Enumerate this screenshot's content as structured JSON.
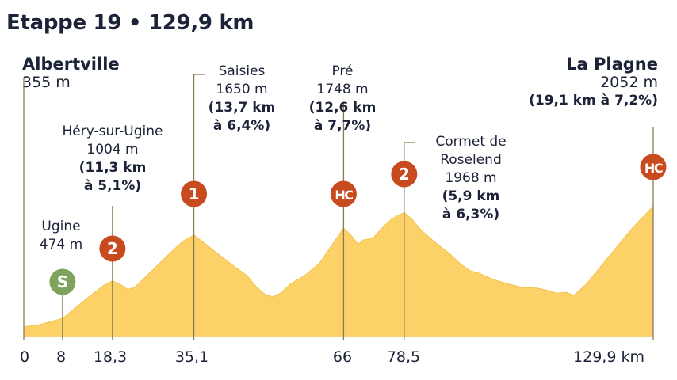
{
  "title": "Etappe 19 • 129,9 km",
  "colors": {
    "profile_fill": "#fcd268",
    "profile_stroke": "#f2c24e",
    "marker_line": "#8a7a55",
    "climb_badge": "#c84a1f",
    "sprint_badge": "#7ea35c"
  },
  "start": {
    "name": "Albertville",
    "altitude": "355 m"
  },
  "finish": {
    "name": "La Plagne",
    "altitude": "2052 m",
    "climb": "(19,1 km à 7,2%)",
    "badge": "HC"
  },
  "points": [
    {
      "name": "Ugine",
      "altitude": "474 m",
      "badge": "S",
      "badge_type": "sprint"
    },
    {
      "name": "Héry-sur-Ugine",
      "altitude": "1004 m",
      "climb_1": "(11,3 km",
      "climb_2": "à 5,1%)",
      "badge": "2"
    },
    {
      "name": "Saisies",
      "altitude": "1650 m",
      "climb_1": "(13,7 km",
      "climb_2": "à 6,4%)",
      "badge": "1"
    },
    {
      "name": "Pré",
      "altitude": "1748 m",
      "climb_1": "(12,6 km",
      "climb_2": "à 7,7%)",
      "badge": "HC"
    },
    {
      "name_1": "Cormet de",
      "name_2": "Roselend",
      "altitude": "1968 m",
      "climb_1": "(5,9 km",
      "climb_2": "à 6,3%)",
      "badge": "2"
    }
  ],
  "x_ticks": [
    "0",
    "8",
    "18,3",
    "35,1",
    "66",
    "78,5",
    "129,9 km"
  ],
  "chart_data": {
    "type": "area",
    "title": "Etappe 19 • 129,9 km",
    "x_unit": "km",
    "y_unit": "m",
    "xlim": [
      0,
      129.9
    ],
    "x": [
      0,
      3,
      8,
      11,
      14,
      16.5,
      18.3,
      20,
      21.5,
      23,
      25,
      28,
      31,
      33,
      35.1,
      37,
      40,
      43,
      46,
      48,
      50,
      51.5,
      53,
      55,
      58,
      61,
      63,
      66,
      67.5,
      69,
      70,
      72,
      73.5,
      76,
      78.5,
      80,
      82,
      85,
      88,
      90,
      92,
      94,
      97,
      100,
      103,
      106,
      108,
      110,
      112,
      113.5,
      116,
      119,
      122,
      125,
      127,
      129.9
    ],
    "y": [
      355,
      380,
      474,
      640,
      810,
      940,
      1004,
      950,
      880,
      920,
      1050,
      1250,
      1450,
      1570,
      1650,
      1550,
      1390,
      1230,
      1080,
      920,
      800,
      780,
      830,
      960,
      1080,
      1250,
      1450,
      1748,
      1650,
      1520,
      1580,
      1600,
      1720,
      1880,
      1968,
      1880,
      1720,
      1540,
      1380,
      1250,
      1150,
      1110,
      1020,
      960,
      910,
      900,
      870,
      830,
      840,
      800,
      950,
      1200,
      1450,
      1700,
      1850,
      2052
    ],
    "key_points": [
      {
        "km": 0,
        "name": "Albertville",
        "altitude": 355
      },
      {
        "km": 8,
        "name": "Ugine",
        "altitude": 474,
        "type": "sprint"
      },
      {
        "km": 18.3,
        "name": "Héry-sur-Ugine",
        "altitude": 1004,
        "category": "2",
        "climb_km": 11.3,
        "gradient_pct": 5.1
      },
      {
        "km": 35.1,
        "name": "Saisies",
        "altitude": 1650,
        "category": "1",
        "climb_km": 13.7,
        "gradient_pct": 6.4
      },
      {
        "km": 66,
        "name": "Pré",
        "altitude": 1748,
        "category": "HC",
        "climb_km": 12.6,
        "gradient_pct": 7.7
      },
      {
        "km": 78.5,
        "name": "Cormet de Roselend",
        "altitude": 1968,
        "category": "2",
        "climb_km": 5.9,
        "gradient_pct": 6.3
      },
      {
        "km": 129.9,
        "name": "La Plagne",
        "altitude": 2052,
        "category": "HC",
        "climb_km": 19.1,
        "gradient_pct": 7.2
      }
    ],
    "grid": false
  }
}
